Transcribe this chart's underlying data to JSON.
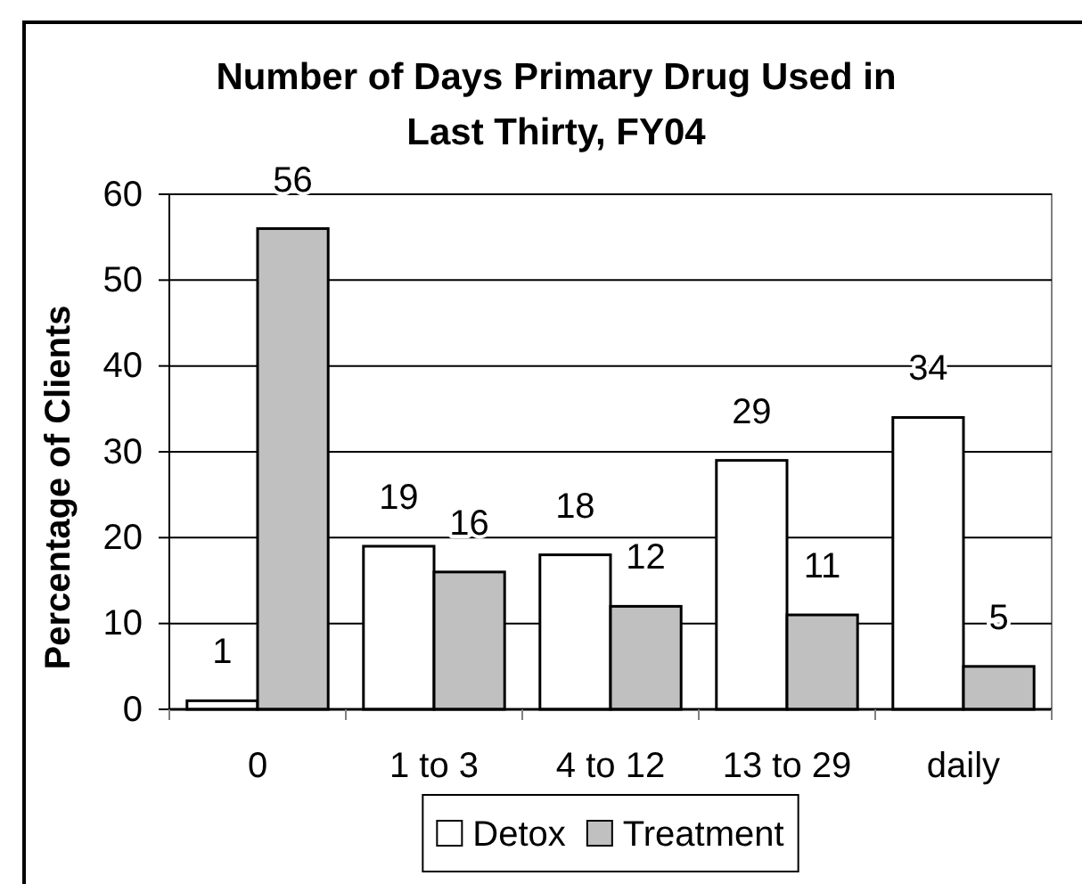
{
  "chart_data": {
    "type": "bar",
    "title": "Number of Days Primary Drug Used in Last Thirty, FY04",
    "ylabel": "Percentage of Clients",
    "categories": [
      "0",
      "1 to 3",
      "4 to 12",
      "13 to 29",
      "daily"
    ],
    "series": [
      {
        "name": "Detox",
        "color": "#ffffff",
        "values": [
          1,
          19,
          18,
          29,
          34
        ]
      },
      {
        "name": "Treatment",
        "color": "#c0c0c0",
        "values": [
          56,
          16,
          12,
          11,
          5
        ]
      }
    ],
    "ylim": [
      0,
      60
    ],
    "yticks": [
      0,
      10,
      20,
      30,
      40,
      50,
      60
    ],
    "grid": "y",
    "legend": "bottom",
    "data_labels": true
  }
}
